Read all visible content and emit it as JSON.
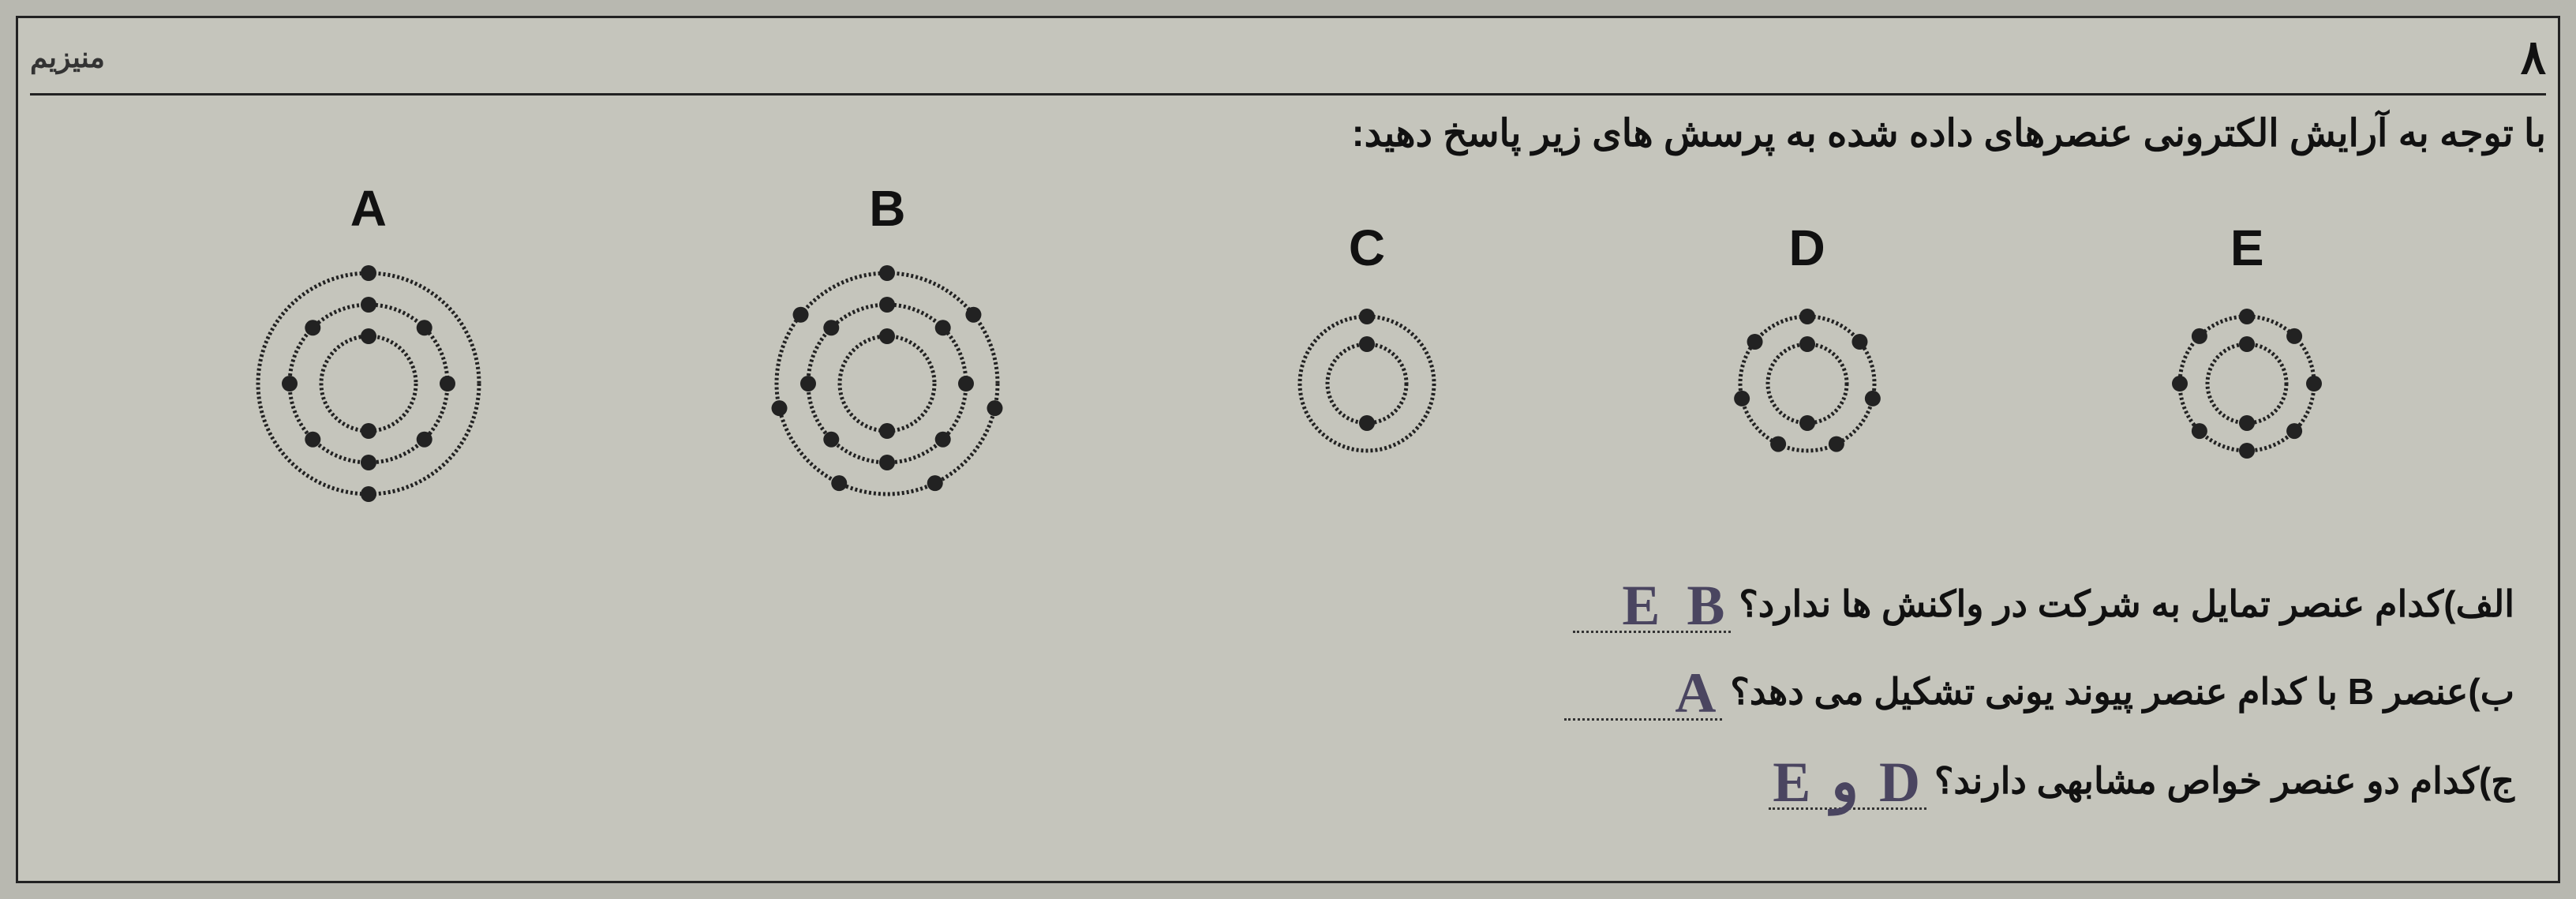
{
  "question_number": "٨",
  "top_label": "منیزیم",
  "header_text": "با توجه به آرایش الکترونی عنصرهای داده شده به پرسش های زیر پاسخ دهید:",
  "diagrams": [
    {
      "label": "A",
      "shells": [
        {
          "radius": 60,
          "electrons": 2
        },
        {
          "radius": 100,
          "electrons": 8
        },
        {
          "radius": 140,
          "electrons": 2
        }
      ],
      "size": "large"
    },
    {
      "label": "B",
      "shells": [
        {
          "radius": 60,
          "electrons": 2
        },
        {
          "radius": 100,
          "electrons": 8
        },
        {
          "radius": 140,
          "electrons": 7
        }
      ],
      "size": "large"
    },
    {
      "label": "C",
      "shells": [
        {
          "radius": 50,
          "electrons": 2
        },
        {
          "radius": 85,
          "electrons": 1
        }
      ],
      "size": "small"
    },
    {
      "label": "D",
      "shells": [
        {
          "radius": 50,
          "electrons": 2
        },
        {
          "radius": 85,
          "electrons": 7
        }
      ],
      "size": "small"
    },
    {
      "label": "E",
      "shells": [
        {
          "radius": 50,
          "electrons": 2
        },
        {
          "radius": 85,
          "electrons": 8
        }
      ],
      "size": "small"
    }
  ],
  "questions": {
    "a": {
      "prefix": "الف)",
      "text": "کدام عنصر تمایل به شرکت در واکنش ها ندارد؟",
      "answer": "E  B"
    },
    "b": {
      "prefix": "ب)",
      "text": "عنصر B با کدام عنصر پیوند یونی تشکیل می دهد؟",
      "answer": "A"
    },
    "c": {
      "prefix": "ج)",
      "text": "کدام دو عنصر خواص مشابهی دارند؟",
      "answer": "D و E"
    }
  },
  "colors": {
    "background": "#b8b8b0",
    "page": "#c5c5bc",
    "border": "#222222",
    "text": "#111111",
    "handwriting": "#4a4560",
    "electron": "#222222",
    "shell": "#222222"
  }
}
